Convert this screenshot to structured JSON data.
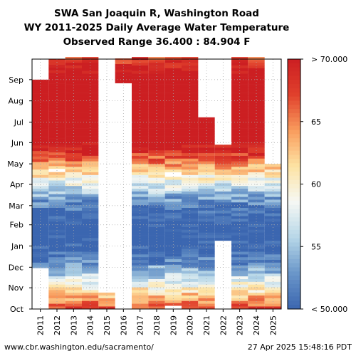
{
  "chart_data": {
    "type": "heatmap",
    "title": "SWA San Joaquin R, Washington Road",
    "subtitle": "WY 2011-2025 Daily Average Water Temperature",
    "range_text": "Observed Range 36.400 : 84.904 F",
    "x": [
      "2011",
      "2012",
      "2013",
      "2014",
      "2015",
      "2016",
      "2017",
      "2018",
      "2019",
      "2020",
      "2021",
      "2022",
      "2023",
      "2024",
      "2025"
    ],
    "y_ticks": [
      "Oct",
      "Nov",
      "Dec",
      "Jan",
      "Feb",
      "Mar",
      "Apr",
      "May",
      "Jun",
      "Jul",
      "Aug",
      "Sep"
    ],
    "grid": true,
    "colorbar": {
      "ticks": [
        "< 50.000",
        "55",
        "60",
        "65",
        "> 70.000"
      ],
      "min": 50,
      "max": 70,
      "colors": [
        "#3b66b0",
        "#6a96c9",
        "#b7d7e8",
        "#f6f8f4",
        "#fde3a3",
        "#f99c5d",
        "#e0402c",
        "#cc1f22"
      ]
    },
    "coverage": [
      {
        "year": "2011",
        "months": "Dec-Sep (partial)"
      },
      {
        "year": "2012",
        "months": "Oct-Sep"
      },
      {
        "year": "2013",
        "months": "Oct-Sep"
      },
      {
        "year": "2014",
        "months": "Oct-Sep"
      },
      {
        "year": "2015",
        "months": "Oct-Nov"
      },
      {
        "year": "2016",
        "months": "Sep"
      },
      {
        "year": "2017",
        "months": "Oct-Sep"
      },
      {
        "year": "2018",
        "months": "Oct-Sep"
      },
      {
        "year": "2019",
        "months": "Oct-Sep"
      },
      {
        "year": "2020",
        "months": "Oct-Sep"
      },
      {
        "year": "2021",
        "months": "Oct-Jul (partial)"
      },
      {
        "year": "2022",
        "months": "Feb-May"
      },
      {
        "year": "2023",
        "months": "Oct-Sep"
      },
      {
        "year": "2024",
        "months": "Oct-Sep"
      },
      {
        "year": "2025",
        "months": "Oct-Apr"
      }
    ]
  },
  "footer": {
    "url": "www.cbr.washington.edu/sacramento/",
    "timestamp": "27 Apr 2025 15:48:16 PDT"
  }
}
